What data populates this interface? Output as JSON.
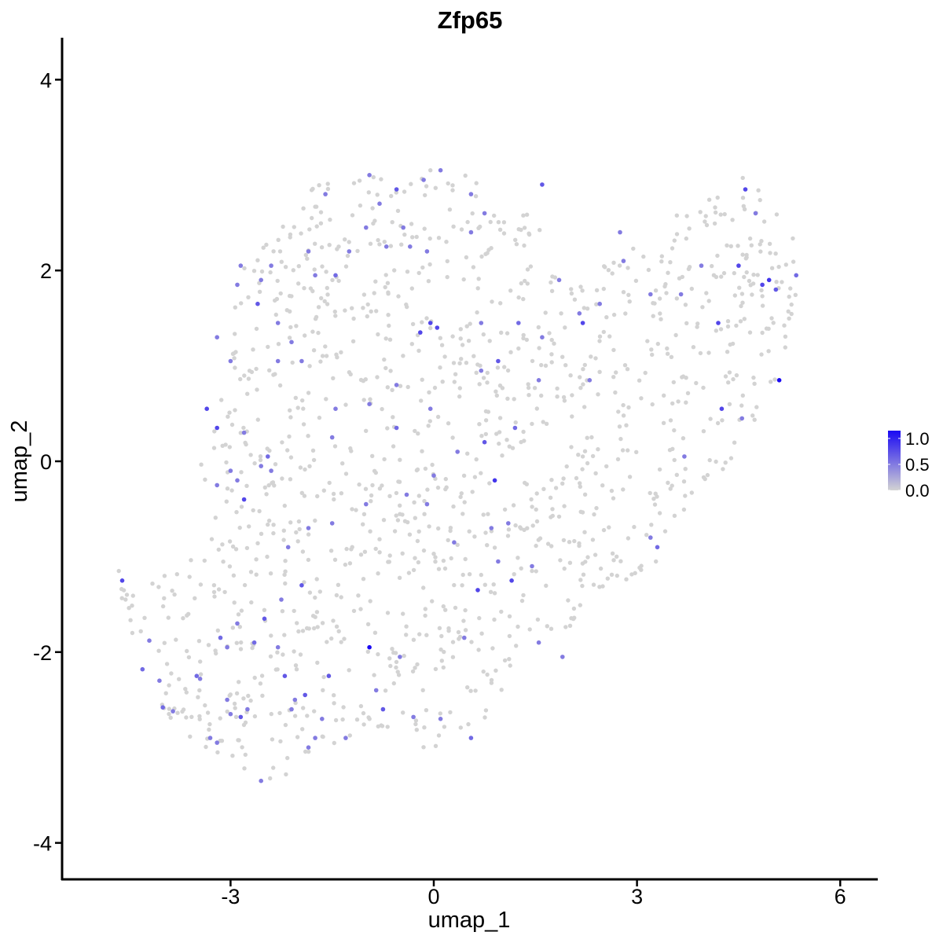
{
  "chart_data": {
    "type": "scatter",
    "title": "Zfp65",
    "xlabel": "umap_1",
    "ylabel": "umap_2",
    "xlim": [
      -5.45,
      6.6
    ],
    "ylim": [
      -4.3,
      4.4
    ],
    "x_ticks": [
      -3,
      0,
      3,
      6
    ],
    "y_ticks": [
      -4,
      -2,
      0,
      2,
      4
    ],
    "x_tick_labels": [
      "-3",
      "0",
      "3",
      "6"
    ],
    "y_tick_labels": [
      "-4",
      "-2",
      "0",
      "2",
      "4"
    ],
    "grid": false,
    "legend": {
      "position": "right",
      "type": "colorbar",
      "labels": [
        "1.0",
        "0.5",
        "0.0"
      ],
      "breaks": [
        1.0,
        0.5,
        0.0
      ],
      "range": [
        0,
        1.15
      ]
    },
    "colors": {
      "low": "#d3d3d3",
      "high": "#1a09f3",
      "dot_radius_hint": "small"
    },
    "expressing_cells": [
      {
        "x": -4.6,
        "y": -1.25,
        "v": 0.8
      },
      {
        "x": -4.3,
        "y": -2.18,
        "v": 0.6
      },
      {
        "x": -4.2,
        "y": -1.88,
        "v": 0.5
      },
      {
        "x": -4.05,
        "y": -2.3,
        "v": 0.5
      },
      {
        "x": -4.0,
        "y": -2.58,
        "v": 0.6
      },
      {
        "x": -3.85,
        "y": -2.62,
        "v": 0.5
      },
      {
        "x": -3.5,
        "y": -2.25,
        "v": 0.6
      },
      {
        "x": -3.45,
        "y": -2.28,
        "v": 0.5
      },
      {
        "x": -3.3,
        "y": -2.9,
        "v": 0.5
      },
      {
        "x": -3.2,
        "y": -2.95,
        "v": 0.5
      },
      {
        "x": -3.05,
        "y": -2.5,
        "v": 0.5
      },
      {
        "x": -3.0,
        "y": -2.65,
        "v": 0.5
      },
      {
        "x": -2.85,
        "y": -2.68,
        "v": 0.7
      },
      {
        "x": -2.75,
        "y": -2.6,
        "v": 0.5
      },
      {
        "x": -3.15,
        "y": -1.85,
        "v": 0.6
      },
      {
        "x": -3.05,
        "y": -1.95,
        "v": 0.5
      },
      {
        "x": -2.9,
        "y": -1.7,
        "v": 0.5
      },
      {
        "x": -2.65,
        "y": -1.9,
        "v": 0.6
      },
      {
        "x": -2.5,
        "y": -1.65,
        "v": 0.7
      },
      {
        "x": -2.3,
        "y": -1.95,
        "v": 0.5
      },
      {
        "x": -2.2,
        "y": -2.25,
        "v": 0.7
      },
      {
        "x": -2.1,
        "y": -2.6,
        "v": 0.5
      },
      {
        "x": -2.05,
        "y": -2.5,
        "v": 0.5
      },
      {
        "x": -1.9,
        "y": -2.45,
        "v": 0.7
      },
      {
        "x": -1.85,
        "y": -3.0,
        "v": 0.5
      },
      {
        "x": -1.75,
        "y": -2.9,
        "v": 0.5
      },
      {
        "x": -1.65,
        "y": -2.7,
        "v": 0.5
      },
      {
        "x": -1.55,
        "y": -2.25,
        "v": 0.7
      },
      {
        "x": -2.55,
        "y": -3.35,
        "v": 0.5
      },
      {
        "x": -1.3,
        "y": -2.9,
        "v": 0.5
      },
      {
        "x": -0.95,
        "y": -1.95,
        "v": 1.15
      },
      {
        "x": -0.85,
        "y": -2.4,
        "v": 0.5
      },
      {
        "x": -0.75,
        "y": -2.6,
        "v": 0.7
      },
      {
        "x": -0.5,
        "y": -2.05,
        "v": 0.5
      },
      {
        "x": -0.3,
        "y": -2.68,
        "v": 0.5
      },
      {
        "x": 0.1,
        "y": -2.7,
        "v": 0.5
      },
      {
        "x": 0.45,
        "y": -1.85,
        "v": 0.5
      },
      {
        "x": 0.55,
        "y": -2.9,
        "v": 0.6
      },
      {
        "x": 0.65,
        "y": -1.35,
        "v": 0.8
      },
      {
        "x": 0.95,
        "y": -1.05,
        "v": 0.5
      },
      {
        "x": 1.15,
        "y": -1.25,
        "v": 0.8
      },
      {
        "x": 1.1,
        "y": -0.65,
        "v": 0.5
      },
      {
        "x": 1.55,
        "y": -1.9,
        "v": 0.5
      },
      {
        "x": 1.9,
        "y": -2.05,
        "v": 0.5
      },
      {
        "x": 1.45,
        "y": -1.1,
        "v": 0.5
      },
      {
        "x": 0.85,
        "y": -0.7,
        "v": 0.5
      },
      {
        "x": 0.3,
        "y": -0.85,
        "v": 0.5
      },
      {
        "x": -0.1,
        "y": -0.45,
        "v": 0.5
      },
      {
        "x": -0.4,
        "y": -0.35,
        "v": 0.5
      },
      {
        "x": -1.0,
        "y": -0.45,
        "v": 0.5
      },
      {
        "x": -1.5,
        "y": -0.65,
        "v": 0.5
      },
      {
        "x": -1.85,
        "y": -0.7,
        "v": 0.5
      },
      {
        "x": -1.95,
        "y": -1.3,
        "v": 0.7
      },
      {
        "x": -2.25,
        "y": -1.45,
        "v": 0.5
      },
      {
        "x": -2.15,
        "y": -0.9,
        "v": 0.5
      },
      {
        "x": -2.4,
        "y": -0.1,
        "v": 0.5
      },
      {
        "x": -2.45,
        "y": 0.05,
        "v": 0.6
      },
      {
        "x": -2.3,
        "y": 1.05,
        "v": 0.5
      },
      {
        "x": -2.55,
        "y": -0.05,
        "v": 0.5
      },
      {
        "x": -2.8,
        "y": -0.4,
        "v": 0.8
      },
      {
        "x": -2.9,
        "y": -0.2,
        "v": 0.5
      },
      {
        "x": -3.0,
        "y": -0.1,
        "v": 0.5
      },
      {
        "x": -3.2,
        "y": 0.35,
        "v": 0.8
      },
      {
        "x": -3.2,
        "y": -0.25,
        "v": 0.5
      },
      {
        "x": -3.2,
        "y": 1.3,
        "v": 0.5
      },
      {
        "x": -3.0,
        "y": 1.05,
        "v": 0.5
      },
      {
        "x": -2.8,
        "y": 0.3,
        "v": 0.5
      },
      {
        "x": -3.35,
        "y": 0.55,
        "v": 0.8
      },
      {
        "x": -2.9,
        "y": 1.85,
        "v": 0.5
      },
      {
        "x": -2.85,
        "y": 2.05,
        "v": 0.5
      },
      {
        "x": -2.6,
        "y": 1.65,
        "v": 0.7
      },
      {
        "x": -2.55,
        "y": 1.9,
        "v": 0.5
      },
      {
        "x": -2.3,
        "y": 1.45,
        "v": 0.5
      },
      {
        "x": -2.4,
        "y": 2.05,
        "v": 0.5
      },
      {
        "x": -2.1,
        "y": 1.25,
        "v": 0.5
      },
      {
        "x": -1.95,
        "y": 1.05,
        "v": 0.5
      },
      {
        "x": -1.85,
        "y": 2.2,
        "v": 0.5
      },
      {
        "x": -1.75,
        "y": 1.95,
        "v": 0.5
      },
      {
        "x": -1.6,
        "y": 2.8,
        "v": 0.5
      },
      {
        "x": -1.45,
        "y": 1.95,
        "v": 0.6
      },
      {
        "x": -1.25,
        "y": 2.2,
        "v": 0.5
      },
      {
        "x": -1.0,
        "y": 2.45,
        "v": 0.5
      },
      {
        "x": -0.95,
        "y": 3.0,
        "v": 0.5
      },
      {
        "x": -0.8,
        "y": 2.7,
        "v": 0.5
      },
      {
        "x": -0.55,
        "y": 2.85,
        "v": 0.7
      },
      {
        "x": -0.45,
        "y": 2.45,
        "v": 0.5
      },
      {
        "x": -0.7,
        "y": 2.25,
        "v": 0.5
      },
      {
        "x": -0.35,
        "y": 2.25,
        "v": 0.5
      },
      {
        "x": -0.1,
        "y": 2.2,
        "v": 0.5
      },
      {
        "x": -0.15,
        "y": 2.95,
        "v": 0.5
      },
      {
        "x": 0.1,
        "y": 3.05,
        "v": 0.5
      },
      {
        "x": 0.55,
        "y": 2.8,
        "v": 0.5
      },
      {
        "x": 0.75,
        "y": 2.6,
        "v": 0.5
      },
      {
        "x": 0.55,
        "y": 2.4,
        "v": 0.5
      },
      {
        "x": 1.6,
        "y": 2.9,
        "v": 0.7
      },
      {
        "x": -0.05,
        "y": 1.45,
        "v": 0.8
      },
      {
        "x": 0.05,
        "y": 1.4,
        "v": 0.8
      },
      {
        "x": -0.2,
        "y": 1.35,
        "v": 0.8
      },
      {
        "x": 0.7,
        "y": 1.45,
        "v": 0.5
      },
      {
        "x": 1.25,
        "y": 1.45,
        "v": 0.6
      },
      {
        "x": 0.95,
        "y": 1.05,
        "v": 0.7
      },
      {
        "x": 0.7,
        "y": 0.95,
        "v": 0.5
      },
      {
        "x": 1.2,
        "y": 0.35,
        "v": 0.6
      },
      {
        "x": 0.75,
        "y": 0.2,
        "v": 0.7
      },
      {
        "x": 0.35,
        "y": 0.1,
        "v": 0.5
      },
      {
        "x": -0.05,
        "y": 0.55,
        "v": 0.5
      },
      {
        "x": -0.55,
        "y": 0.35,
        "v": 0.6
      },
      {
        "x": -0.55,
        "y": 0.8,
        "v": 0.5
      },
      {
        "x": -0.95,
        "y": 0.6,
        "v": 0.5
      },
      {
        "x": -1.45,
        "y": 0.55,
        "v": 0.5
      },
      {
        "x": -1.5,
        "y": 0.25,
        "v": 0.5
      },
      {
        "x": 0.9,
        "y": -0.2,
        "v": 0.9
      },
      {
        "x": 0.0,
        "y": -0.15,
        "v": 0.5
      },
      {
        "x": 1.55,
        "y": 0.85,
        "v": 0.5
      },
      {
        "x": 2.2,
        "y": 1.45,
        "v": 0.8
      },
      {
        "x": 2.45,
        "y": 1.65,
        "v": 0.5
      },
      {
        "x": 2.75,
        "y": 2.4,
        "v": 0.5
      },
      {
        "x": 2.8,
        "y": 2.1,
        "v": 0.5
      },
      {
        "x": 3.2,
        "y": 1.75,
        "v": 0.5
      },
      {
        "x": 3.65,
        "y": 1.75,
        "v": 0.5
      },
      {
        "x": 3.95,
        "y": 2.05,
        "v": 0.5
      },
      {
        "x": 4.2,
        "y": 1.45,
        "v": 0.8
      },
      {
        "x": 4.25,
        "y": 0.55,
        "v": 0.8
      },
      {
        "x": 4.55,
        "y": 0.45,
        "v": 0.5
      },
      {
        "x": 4.5,
        "y": 2.05,
        "v": 0.8
      },
      {
        "x": 4.85,
        "y": 1.85,
        "v": 0.8
      },
      {
        "x": 4.95,
        "y": 1.9,
        "v": 0.9
      },
      {
        "x": 5.05,
        "y": 1.8,
        "v": 0.7
      },
      {
        "x": 5.1,
        "y": 0.85,
        "v": 1.15
      },
      {
        "x": 5.35,
        "y": 1.95,
        "v": 0.6
      },
      {
        "x": 4.6,
        "y": 2.85,
        "v": 0.8
      },
      {
        "x": 4.75,
        "y": 2.6,
        "v": 0.5
      },
      {
        "x": 3.7,
        "y": 0.05,
        "v": 0.5
      },
      {
        "x": 3.3,
        "y": -0.9,
        "v": 0.6
      },
      {
        "x": 3.2,
        "y": -0.8,
        "v": 0.5
      },
      {
        "x": 2.3,
        "y": 0.85,
        "v": 0.5
      },
      {
        "x": 2.15,
        "y": 1.55,
        "v": 0.5
      },
      {
        "x": 1.6,
        "y": 1.3,
        "v": 0.5
      },
      {
        "x": 1.85,
        "y": 1.9,
        "v": 0.5
      }
    ]
  }
}
